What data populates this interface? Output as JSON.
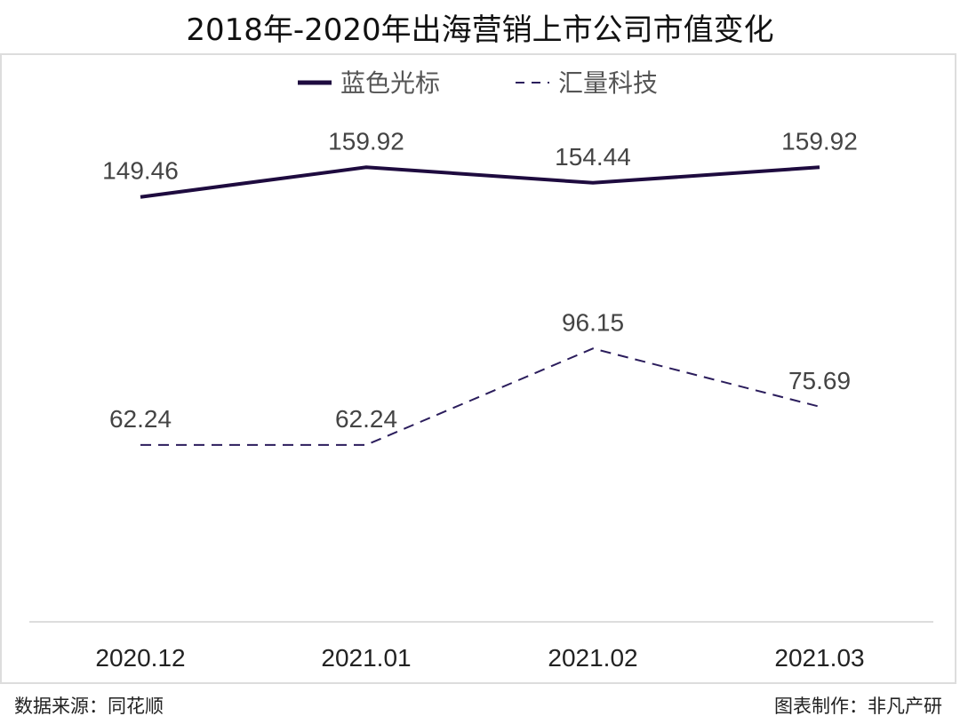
{
  "title": "2018年-2020年出海营销上市公司市值变化",
  "footer": {
    "source": "数据来源：同花顺",
    "credit": "图表制作：非凡产研"
  },
  "chart_data": {
    "type": "line",
    "title": "2018年-2020年出海营销上市公司市值变化",
    "categories": [
      "2020.12",
      "2021.01",
      "2021.02",
      "2021.03"
    ],
    "ylim": [
      0,
      200
    ],
    "grid": false,
    "legend": "top-center",
    "series": [
      {
        "name": "蓝色光标",
        "values": [
          149.46,
          159.92,
          154.44,
          159.92
        ],
        "labels": [
          "149.46",
          "159.92",
          "154.44",
          "159.92"
        ],
        "color": "#1e0b3f",
        "style": "solid"
      },
      {
        "name": "汇量科技",
        "values": [
          62.24,
          62.24,
          96.15,
          75.69
        ],
        "labels": [
          "62.24",
          "62.24",
          "96.15",
          "75.69"
        ],
        "color": "#2b1d5c",
        "style": "dashed"
      }
    ]
  }
}
